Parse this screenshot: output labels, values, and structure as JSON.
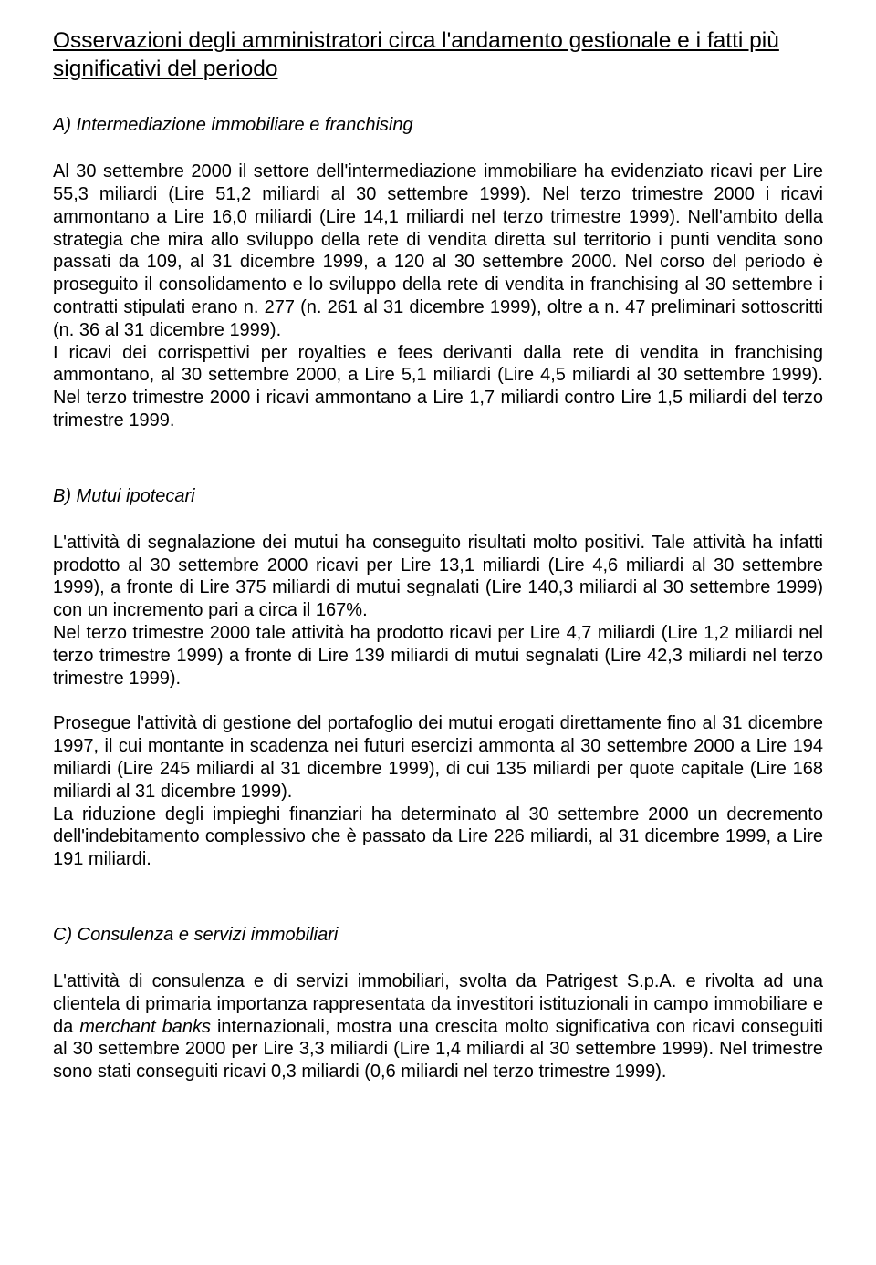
{
  "title": "Osservazioni degli amministratori circa l'andamento gestionale e i fatti più significativi del periodo",
  "sections": [
    {
      "label": "A) Intermediazione immobiliare e franchising",
      "paragraphs": [
        "Al 30 settembre 2000 il settore dell'intermediazione immobiliare ha evidenziato ricavi per Lire 55,3 miliardi (Lire 51,2 miliardi al 30 settembre 1999). Nel terzo trimestre 2000 i ricavi ammontano a Lire 16,0 miliardi (Lire 14,1 miliardi nel terzo trimestre 1999). Nell'ambito della strategia che mira allo sviluppo della rete di vendita diretta sul territorio i punti vendita sono passati da 109, al 31 dicembre 1999, a 120 al 30 settembre 2000. Nel corso del periodo è proseguito il consolidamento e lo sviluppo della rete di vendita in franchising al 30 settembre i contratti stipulati erano n. 277 (n. 261 al 31 dicembre 1999), oltre a n. 47 preliminari sottoscritti (n. 36 al 31 dicembre 1999).\nI ricavi dei corrispettivi per royalties e fees derivanti dalla rete di vendita in franchising ammontano, al 30 settembre 2000, a Lire 5,1 miliardi (Lire 4,5 miliardi al 30 settembre 1999). Nel terzo trimestre 2000 i ricavi ammontano a Lire 1,7 miliardi contro Lire 1,5 miliardi del terzo trimestre 1999."
      ]
    },
    {
      "label": "B) Mutui ipotecari",
      "paragraphs": [
        "L'attività di segnalazione dei mutui ha conseguito risultati molto positivi. Tale attività ha infatti prodotto al 30 settembre 2000 ricavi per Lire 13,1 miliardi (Lire 4,6 miliardi al 30 settembre 1999), a fronte di Lire 375 miliardi di mutui segnalati (Lire 140,3 miliardi al 30 settembre 1999) con un incremento pari a circa il 167%.\nNel terzo trimestre 2000 tale attività ha prodotto ricavi per Lire 4,7 miliardi (Lire 1,2 miliardi nel terzo trimestre 1999) a fronte di Lire 139 miliardi di mutui segnalati (Lire 42,3 miliardi nel terzo trimestre 1999).",
        "Prosegue l'attività di gestione del portafoglio dei mutui erogati direttamente fino al 31 dicembre 1997, il cui montante in scadenza nei futuri esercizi ammonta al 30 settembre 2000 a Lire 194 miliardi (Lire 245 miliardi al 31 dicembre 1999), di cui 135 miliardi per quote capitale (Lire 168 miliardi al 31 dicembre 1999).\nLa riduzione degli impieghi finanziari ha determinato al 30 settembre 2000 un decremento dell'indebitamento complessivo che è passato da Lire 226 miliardi, al 31 dicembre 1999, a Lire 191 miliardi."
      ]
    },
    {
      "label": "C) Consulenza e servizi immobiliari",
      "html": "L'attività di consulenza e di servizi immobiliari, svolta da Patrigest S.p.A. e rivolta ad una clientela di primaria importanza rappresentata da investitori istituzionali in campo immobiliare e da <span class=\"italic\">merchant banks</span> internazionali, mostra una crescita molto significativa con ricavi conseguiti  al 30 settembre 2000 per Lire 3,3 miliardi (Lire 1,4 miliardi al 30 settembre 1999). Nel trimestre sono stati conseguiti ricavi 0,3 miliardi (0,6 miliardi nel terzo trimestre 1999)."
    }
  ]
}
